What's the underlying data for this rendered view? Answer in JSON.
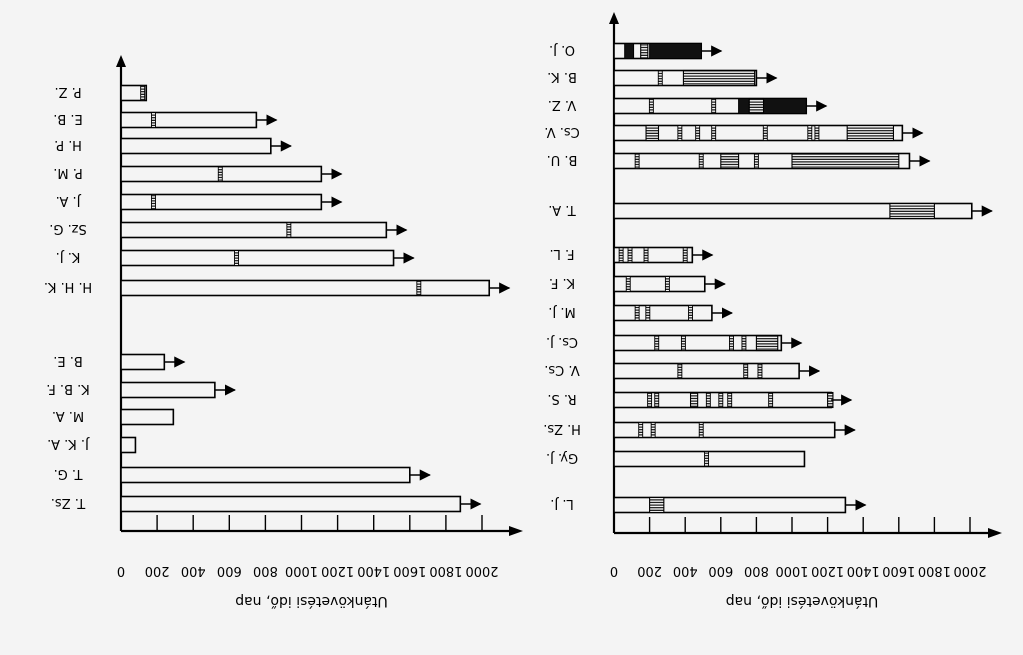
{
  "chart_data": [
    {
      "type": "bar",
      "orientation": "horizontal",
      "xlabel": "Utánkövetési idő, nap",
      "ylabel": "",
      "xlim": [
        0,
        2000
      ],
      "xticks": [
        0,
        200,
        400,
        600,
        800,
        1000,
        1200,
        1400,
        1600,
        1800,
        2000
      ],
      "grid": false,
      "legend": "none",
      "groups": [
        {
          "bars": [
            {
              "label": "T. Zs.",
              "value": 1880,
              "arrow": true,
              "markers": []
            },
            {
              "label": "T. G.",
              "value": 1600,
              "arrow": true,
              "markers": []
            },
            {
              "label": "J. K. A.",
              "value": 80,
              "arrow": false,
              "markers": []
            },
            {
              "label": "M. A.",
              "value": 290,
              "arrow": false,
              "markers": []
            },
            {
              "label": "K. B. F.",
              "value": 520,
              "arrow": true,
              "markers": []
            },
            {
              "label": "B. E.",
              "value": 240,
              "arrow": true,
              "markers": []
            }
          ]
        },
        {
          "bars": [
            {
              "label": "H. H. K.",
              "value": 2040,
              "arrow": true,
              "markers": [
                {
                  "at": 1650,
                  "kind": "tick"
                }
              ]
            },
            {
              "label": "K. J.",
              "value": 1510,
              "arrow": true,
              "markers": [
                {
                  "at": 640,
                  "kind": "tick"
                }
              ]
            },
            {
              "label": "Sz. G.",
              "value": 1470,
              "arrow": true,
              "markers": [
                {
                  "at": 930,
                  "kind": "tick"
                }
              ]
            },
            {
              "label": "J. A.",
              "value": 1110,
              "arrow": true,
              "markers": [
                {
                  "at": 180,
                  "kind": "tick"
                }
              ]
            },
            {
              "label": "P. M.",
              "value": 1110,
              "arrow": true,
              "markers": [
                {
                  "at": 550,
                  "kind": "tick"
                }
              ]
            },
            {
              "label": "H. P.",
              "value": 830,
              "arrow": true,
              "markers": []
            },
            {
              "label": "E. B.",
              "value": 750,
              "arrow": true,
              "markers": [
                {
                  "at": 180,
                  "kind": "tick"
                }
              ]
            },
            {
              "label": "P. Z.",
              "value": 140,
              "arrow": false,
              "markers": [
                {
                  "at": 120,
                  "kind": "tick"
                }
              ]
            }
          ]
        }
      ]
    },
    {
      "type": "bar",
      "orientation": "horizontal",
      "xlabel": "Utánkövetési idő, nap",
      "ylabel": "",
      "xlim": [
        0,
        2000
      ],
      "xticks": [
        0,
        200,
        400,
        600,
        800,
        1000,
        1200,
        1400,
        1600,
        1800,
        2000
      ],
      "grid": false,
      "legend": "none",
      "groups": [
        {
          "bars": [
            {
              "label": "L. J.",
              "value": 1300,
              "arrow": true,
              "markers": [
                {
                  "at": 200,
                  "kind": "hatch",
                  "width": 80
                }
              ]
            },
            {
              "label": "Gy. J.",
              "value": 1070,
              "arrow": false,
              "markers": [
                {
                  "at": 520,
                  "kind": "tick"
                }
              ]
            },
            {
              "label": "H. Zs.",
              "value": 1240,
              "arrow": true,
              "markers": [
                {
                  "at": 150,
                  "kind": "tick"
                },
                {
                  "at": 220,
                  "kind": "tick"
                },
                {
                  "at": 490,
                  "kind": "tick"
                }
              ]
            },
            {
              "label": "R. S.",
              "value": 1220,
              "arrow": true,
              "markers": [
                {
                  "at": 200,
                  "kind": "tick"
                },
                {
                  "at": 240,
                  "kind": "tick"
                },
                {
                  "at": 430,
                  "kind": "hatch",
                  "width": 40
                },
                {
                  "at": 530,
                  "kind": "tick"
                },
                {
                  "at": 600,
                  "kind": "tick"
                },
                {
                  "at": 650,
                  "kind": "tick"
                },
                {
                  "at": 880,
                  "kind": "tick"
                },
                {
                  "at": 1200,
                  "kind": "hatch",
                  "width": 30
                }
              ]
            },
            {
              "label": "V. Cs.",
              "value": 1040,
              "arrow": true,
              "markers": [
                {
                  "at": 370,
                  "kind": "tick"
                },
                {
                  "at": 740,
                  "kind": "tick"
                },
                {
                  "at": 820,
                  "kind": "tick"
                }
              ]
            },
            {
              "label": "Cs. J.",
              "value": 940,
              "arrow": true,
              "markers": [
                {
                  "at": 240,
                  "kind": "tick"
                },
                {
                  "at": 390,
                  "kind": "tick"
                },
                {
                  "at": 660,
                  "kind": "tick"
                },
                {
                  "at": 730,
                  "kind": "tick"
                },
                {
                  "at": 800,
                  "kind": "hatch",
                  "width": 120
                }
              ]
            },
            {
              "label": "M. J.",
              "value": 550,
              "arrow": true,
              "markers": [
                {
                  "at": 130,
                  "kind": "tick"
                },
                {
                  "at": 190,
                  "kind": "tick"
                },
                {
                  "at": 430,
                  "kind": "tick"
                }
              ]
            },
            {
              "label": "K. F.",
              "value": 510,
              "arrow": true,
              "markers": [
                {
                  "at": 80,
                  "kind": "tick"
                },
                {
                  "at": 300,
                  "kind": "tick"
                }
              ]
            },
            {
              "label": "F. L.",
              "value": 440,
              "arrow": true,
              "markers": [
                {
                  "at": 40,
                  "kind": "tick"
                },
                {
                  "at": 90,
                  "kind": "tick"
                },
                {
                  "at": 180,
                  "kind": "tick"
                },
                {
                  "at": 400,
                  "kind": "tick"
                }
              ]
            }
          ]
        },
        {
          "bars": [
            {
              "label": "T. A.",
              "value": 2010,
              "arrow": true,
              "markers": [
                {
                  "at": 1550,
                  "kind": "hatch",
                  "width": 250
                }
              ]
            },
            {
              "label": "B. U.",
              "value": 1660,
              "arrow": true,
              "markers": [
                {
                  "at": 130,
                  "kind": "tick"
                },
                {
                  "at": 490,
                  "kind": "tick"
                },
                {
                  "at": 600,
                  "kind": "hatch",
                  "width": 100
                },
                {
                  "at": 800,
                  "kind": "tick"
                },
                {
                  "at": 1000,
                  "kind": "hatch",
                  "width": 600
                }
              ]
            },
            {
              "label": "Cs. V.",
              "value": 1620,
              "arrow": true,
              "markers": [
                {
                  "at": 180,
                  "kind": "hatch",
                  "width": 70
                },
                {
                  "at": 370,
                  "kind": "tick"
                },
                {
                  "at": 470,
                  "kind": "tick"
                },
                {
                  "at": 560,
                  "kind": "tick"
                },
                {
                  "at": 850,
                  "kind": "tick"
                },
                {
                  "at": 1100,
                  "kind": "tick"
                },
                {
                  "at": 1140,
                  "kind": "tick"
                },
                {
                  "at": 1310,
                  "kind": "hatch",
                  "width": 260
                }
              ]
            },
            {
              "label": "V. Z.",
              "value": 1080,
              "arrow": true,
              "markers": [
                {
                  "at": 210,
                  "kind": "tick"
                },
                {
                  "at": 560,
                  "kind": "tick"
                },
                {
                  "at": 700,
                  "kind": "solid",
                  "width": 60
                },
                {
                  "at": 760,
                  "kind": "hatch",
                  "width": 80
                },
                {
                  "at": 840,
                  "kind": "solid",
                  "width": 240
                }
              ]
            },
            {
              "label": "B. K.",
              "value": 800,
              "arrow": true,
              "markers": [
                {
                  "at": 260,
                  "kind": "tick"
                },
                {
                  "at": 390,
                  "kind": "hatch",
                  "width": 400
                }
              ]
            },
            {
              "label": "O. J.",
              "value": 490,
              "arrow": true,
              "markers": [
                {
                  "at": 60,
                  "kind": "solid",
                  "width": 50
                },
                {
                  "at": 150,
                  "kind": "hatch",
                  "width": 40
                },
                {
                  "at": 200,
                  "kind": "solid",
                  "width": 290
                }
              ]
            }
          ]
        }
      ]
    }
  ]
}
